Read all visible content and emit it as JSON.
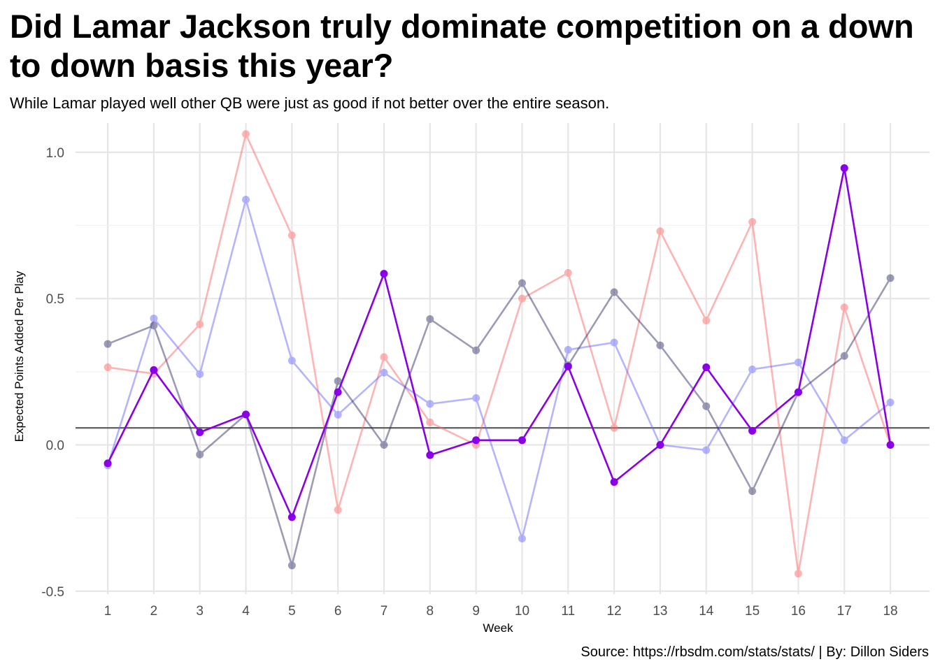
{
  "title": "Did Lamar Jackson truly dominate competition on a down to down basis this year?",
  "subtitle": "While Lamar played well other QB were just as good if not better over the entire season.",
  "caption": "Source: https://rbsdm.com/stats/stats/ | By: Dillon Siders",
  "chart_data": {
    "type": "line",
    "xlabel": "Week",
    "ylabel": "Expected Points Added Per Play",
    "x": [
      1,
      2,
      3,
      4,
      5,
      6,
      7,
      8,
      9,
      10,
      11,
      12,
      13,
      14,
      15,
      16,
      17,
      18
    ],
    "xlim": [
      0.3,
      18.85
    ],
    "ylim": [
      -0.51,
      1.1
    ],
    "y_ticks": [
      -0.5,
      0.0,
      0.5,
      1.0
    ],
    "y_tick_labels": [
      "-0.5",
      "0.0",
      "0.5",
      "1.0"
    ],
    "x_tick_labels": [
      "1",
      "2",
      "3",
      "4",
      "5",
      "6",
      "7",
      "8",
      "9",
      "10",
      "11",
      "12",
      "13",
      "14",
      "15",
      "16",
      "17",
      "18"
    ],
    "grid": true,
    "legend": "none",
    "reference_line": {
      "y": 0.058,
      "color": "#666666"
    },
    "series": [
      {
        "color": "#ff6b6b",
        "opacity": 0.5,
        "emphasis": false,
        "values": [
          0.265,
          0.243,
          0.412,
          1.062,
          0.716,
          -0.222,
          0.3,
          0.077,
          0.0,
          0.5,
          0.588,
          0.058,
          0.73,
          0.425,
          0.762,
          -0.44,
          0.47,
          0.0
        ]
      },
      {
        "color": "#6b6bff",
        "opacity": 0.5,
        "emphasis": false,
        "values": [
          -0.07,
          0.432,
          0.242,
          0.838,
          0.288,
          0.103,
          0.247,
          0.14,
          0.16,
          -0.32,
          0.325,
          0.35,
          0.0,
          -0.018,
          0.258,
          0.282,
          0.016,
          0.145
        ]
      },
      {
        "color": "#23235e",
        "opacity": 0.45,
        "emphasis": false,
        "values": [
          0.345,
          0.408,
          -0.033,
          0.104,
          -0.412,
          0.218,
          0.0,
          0.43,
          0.323,
          0.553,
          0.272,
          0.522,
          0.34,
          0.132,
          -0.158,
          0.18,
          0.304,
          0.57
        ]
      },
      {
        "color": "#8a00e6",
        "opacity": 1.0,
        "emphasis": true,
        "values": [
          -0.063,
          0.256,
          0.043,
          0.104,
          -0.247,
          0.18,
          0.585,
          -0.035,
          0.016,
          0.016,
          0.268,
          -0.127,
          0.0,
          0.265,
          0.048,
          0.18,
          0.946,
          0.0
        ]
      }
    ]
  }
}
